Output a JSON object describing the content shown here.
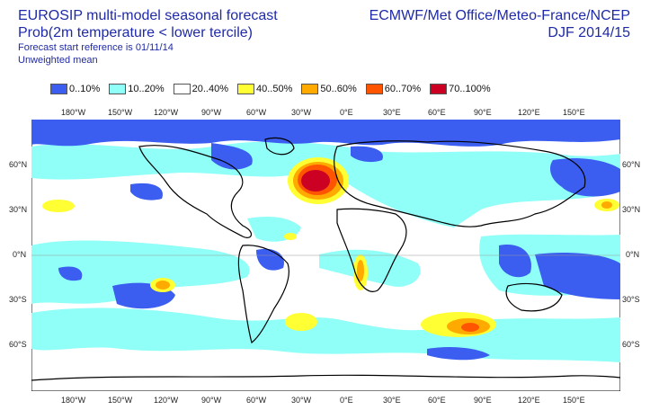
{
  "header": {
    "title": "EUROSIP multi-model seasonal forecast",
    "subtitle": "Prob(2m temperature < lower tercile)",
    "line3": "Forecast start reference is 01/11/14",
    "line4": "Unweighted mean",
    "right1": "ECMWF/Met Office/Meteo-France/NCEP",
    "right2": "DJF 2014/15"
  },
  "legend": [
    {
      "label": "0..10%",
      "color": "#3b5ef0"
    },
    {
      "label": "10..20%",
      "color": "#8ffff8"
    },
    {
      "label": "20..40%",
      "color": "#ffffff"
    },
    {
      "label": "40..50%",
      "color": "#ffff33"
    },
    {
      "label": "50..60%",
      "color": "#ffaa00"
    },
    {
      "label": "60..70%",
      "color": "#ff5500"
    },
    {
      "label": "70..100%",
      "color": "#cc0022"
    }
  ],
  "axes": {
    "lon_labels": [
      "180°W",
      "150°W",
      "120°W",
      "90°W",
      "60°W",
      "30°W",
      "0°E",
      "30°E",
      "60°E",
      "90°E",
      "120°E",
      "150°E"
    ],
    "lat_labels": [
      "60°N",
      "30°N",
      "0°N",
      "30°S",
      "60°S"
    ]
  }
}
